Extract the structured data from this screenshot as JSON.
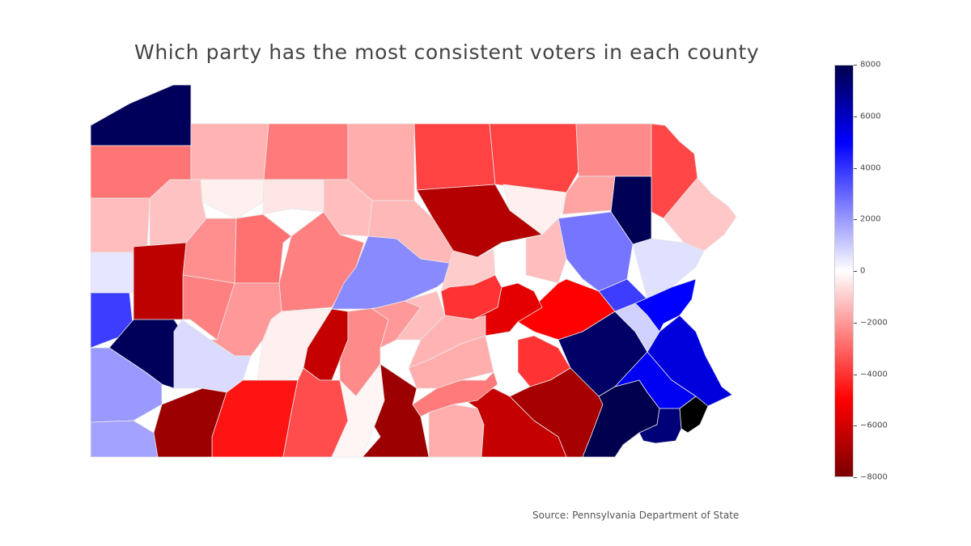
{
  "title": "Which party has the most consistent voters in each county",
  "source": "Source: Pennsylvania Department of State",
  "colorscale": {
    "min": -8000,
    "max": 8000,
    "ticks": [
      "8000",
      "6000",
      "4000",
      "2000",
      "0",
      "−2000",
      "−4000",
      "−6000",
      "−8000"
    ],
    "stops": [
      {
        "value": 8000,
        "color": "#00004f"
      },
      {
        "value": 5000,
        "color": "#0000ff"
      },
      {
        "value": 0,
        "color": "#ffffff"
      },
      {
        "value": -5000,
        "color": "#ff0000"
      },
      {
        "value": -8000,
        "color": "#7a0000"
      }
    ]
  },
  "counties": [
    {
      "v": 7800
    },
    {
      "v": -2700
    },
    {
      "v": -1500
    },
    {
      "v": -2600
    },
    {
      "v": -1600
    },
    {
      "v": -3700
    },
    {
      "v": -3700
    },
    {
      "v": -2300
    },
    {
      "v": -3600
    },
    {
      "v": -1300
    },
    {
      "v": -300
    },
    {
      "v": -1200
    },
    {
      "v": -500
    },
    {
      "v": -1300
    },
    {
      "v": -6700
    },
    {
      "v": -300
    },
    {
      "v": -1800
    },
    {
      "v": 7900
    },
    {
      "v": -1100
    },
    {
      "v": 500
    },
    {
      "v": -6500
    },
    {
      "v": -2200
    },
    {
      "v": -2800
    },
    {
      "v": -2500
    },
    {
      "v": 2300
    },
    {
      "v": -1400
    },
    {
      "v": -1000
    },
    {
      "v": 2700
    },
    {
      "v": 600
    },
    {
      "v": -1300
    },
    {
      "v": 3800
    },
    {
      "v": 7800
    },
    {
      "v": -2500
    },
    {
      "v": -2000
    },
    {
      "v": -300
    },
    {
      "v": -6300
    },
    {
      "v": -2300
    },
    {
      "v": -2000
    },
    {
      "v": -4000
    },
    {
      "v": -1300
    },
    {
      "v": -1500
    },
    {
      "v": -5000
    },
    {
      "v": 3800
    },
    {
      "v": 5000
    },
    {
      "v": 2000
    },
    {
      "v": 700
    },
    {
      "v": -4600
    },
    {
      "v": -3500
    },
    {
      "v": -1600
    },
    {
      "v": -5600
    },
    {
      "v": -4000
    },
    {
      "v": -7200
    },
    {
      "v": -1600
    },
    {
      "v": -6300
    },
    {
      "v": -200
    },
    {
      "v": 7600
    },
    {
      "v": 5600
    },
    {
      "v": 900
    },
    {
      "v": 1800
    },
    {
      "v": -7200
    },
    {
      "v": -2600
    },
    {
      "v": -7000
    },
    {
      "v": 8000
    },
    {
      "v": 5200
    },
    {
      "v": 7300
    }
  ]
}
